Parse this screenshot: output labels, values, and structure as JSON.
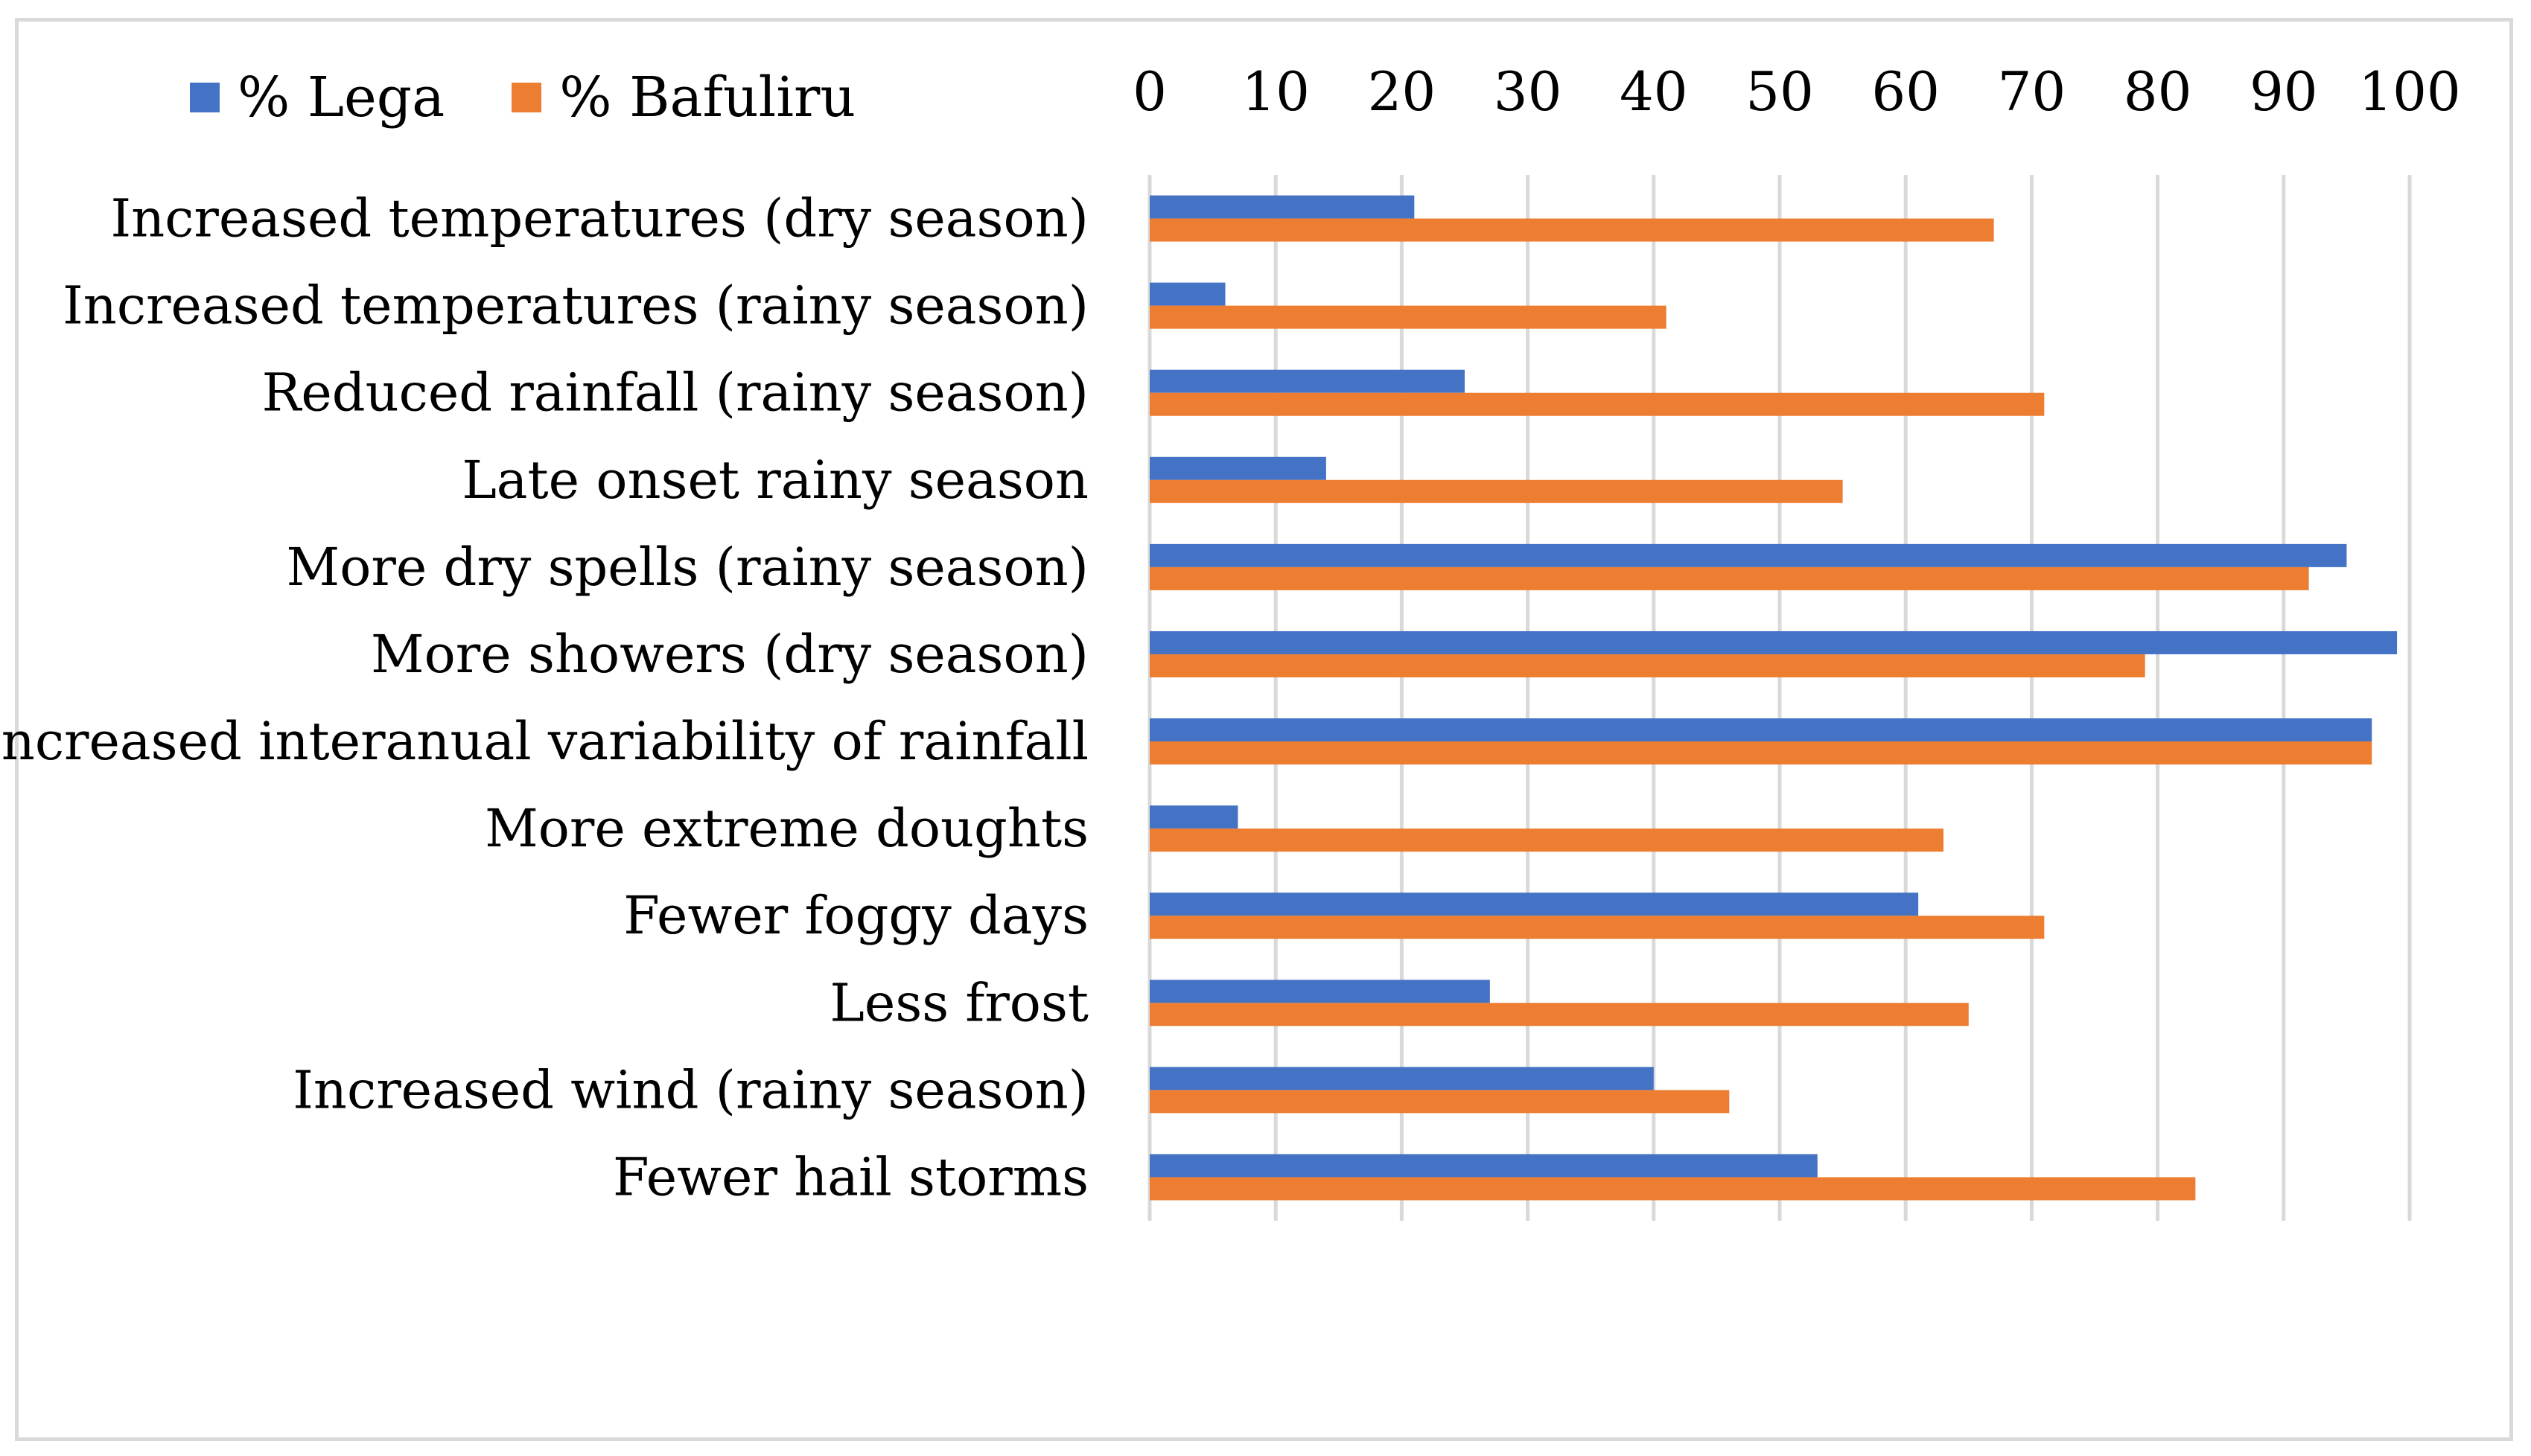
{
  "chart_data": {
    "type": "bar",
    "orientation": "horizontal",
    "title": "",
    "xlabel": "",
    "ylabel": "",
    "xlim": [
      0,
      100
    ],
    "x_ticks": [
      "0",
      "10",
      "20",
      "30",
      "40",
      "50",
      "60",
      "70",
      "80",
      "90",
      "100"
    ],
    "x_tick_values": [
      0,
      10,
      20,
      30,
      40,
      50,
      60,
      70,
      80,
      90,
      100
    ],
    "x_axis_position": "top",
    "grid": true,
    "legend_position": "top-left",
    "categories": [
      "Increased temperatures (dry season)",
      "Increased temperatures (rainy season)",
      "Reduced rainfall (rainy season)",
      "Late onset rainy season",
      "More dry spells (rainy season)",
      "More showers (dry season)",
      "Increased interanual variability of rainfall",
      "More extreme doughts",
      "Fewer foggy days",
      "Less frost",
      "Increased wind (rainy season)",
      "Fewer hail storms"
    ],
    "series": [
      {
        "name": "% Lega",
        "color": "#4472c4",
        "values": [
          21,
          6,
          25,
          14,
          95,
          99,
          97,
          7,
          61,
          27,
          40,
          53
        ]
      },
      {
        "name": "% Bafuliru",
        "color": "#ed7d31",
        "values": [
          67,
          41,
          71,
          55,
          92,
          79,
          97,
          63,
          71,
          65,
          46,
          83
        ]
      }
    ]
  },
  "colors": {
    "grid": "#d9d9d9",
    "frame": "#d9d9d9"
  }
}
